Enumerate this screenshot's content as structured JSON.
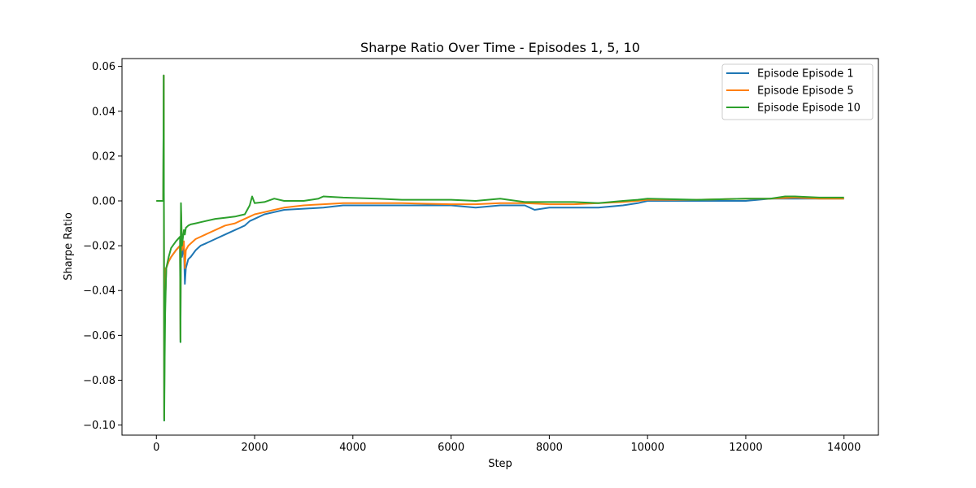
{
  "chart_data": {
    "type": "line",
    "title": "Sharpe Ratio Over Time - Episodes 1, 5, 10",
    "xlabel": "Step",
    "ylabel": "Sharpe Ratio",
    "xlim": [
      -700,
      14700
    ],
    "ylim": [
      -0.1045,
      0.0635
    ],
    "xticks": [
      0,
      2000,
      4000,
      6000,
      8000,
      10000,
      12000,
      14000
    ],
    "xtick_labels": [
      "0",
      "2000",
      "4000",
      "6000",
      "8000",
      "10000",
      "12000",
      "14000"
    ],
    "yticks": [
      -0.1,
      -0.08,
      -0.06,
      -0.04,
      -0.02,
      0.0,
      0.02,
      0.04,
      0.06
    ],
    "ytick_labels": [
      "−0.10",
      "−0.08",
      "−0.06",
      "−0.04",
      "−0.02",
      "0.00",
      "0.02",
      "0.04",
      "0.06"
    ],
    "grid": false,
    "legend_position": "top-right",
    "series": [
      {
        "name": "Episode Episode 1",
        "color": "#1f77b4",
        "x": [
          0,
          100,
          140,
          150,
          160,
          170,
          180,
          200,
          250,
          300,
          400,
          480,
          490,
          500,
          520,
          560,
          580,
          600,
          650,
          700,
          800,
          900,
          1000,
          1200,
          1400,
          1600,
          1700,
          1800,
          1900,
          2000,
          2200,
          2400,
          2600,
          3000,
          3400,
          3800,
          4500,
          5000,
          6000,
          6500,
          7000,
          7500,
          7700,
          8000,
          8500,
          9000,
          9500,
          9800,
          10000,
          11000,
          12000,
          12500,
          13000,
          13500,
          14000
        ],
        "y": [
          0.0,
          0.0,
          0.0,
          0.056,
          -0.098,
          -0.03,
          -0.045,
          -0.03,
          -0.027,
          -0.025,
          -0.022,
          -0.02,
          -0.063,
          -0.005,
          -0.025,
          -0.02,
          -0.037,
          -0.03,
          -0.026,
          -0.025,
          -0.022,
          -0.02,
          -0.019,
          -0.017,
          -0.015,
          -0.013,
          -0.012,
          -0.011,
          -0.009,
          -0.008,
          -0.006,
          -0.005,
          -0.004,
          -0.0035,
          -0.003,
          -0.002,
          -0.002,
          -0.002,
          -0.002,
          -0.003,
          -0.002,
          -0.002,
          -0.004,
          -0.003,
          -0.003,
          -0.003,
          -0.002,
          -0.001,
          0.0,
          0.0,
          0.0,
          0.001,
          0.001,
          0.001,
          0.001
        ]
      },
      {
        "name": "Episode Episode 5",
        "color": "#ff7f0e",
        "x": [
          0,
          100,
          140,
          150,
          160,
          170,
          180,
          200,
          250,
          300,
          400,
          480,
          490,
          500,
          520,
          560,
          580,
          600,
          650,
          700,
          800,
          900,
          1000,
          1200,
          1400,
          1600,
          1700,
          1800,
          1900,
          2000,
          2200,
          2400,
          2600,
          3000,
          3400,
          3800,
          4500,
          5000,
          6000,
          6500,
          7000,
          7500,
          8000,
          8500,
          9000,
          9500,
          9800,
          10000,
          11000,
          12000,
          12500,
          13000,
          13500,
          14000
        ],
        "y": [
          0.0,
          0.0,
          0.0,
          0.056,
          -0.097,
          -0.03,
          -0.045,
          -0.03,
          -0.027,
          -0.025,
          -0.022,
          -0.02,
          -0.062,
          -0.004,
          -0.022,
          -0.018,
          -0.03,
          -0.022,
          -0.02,
          -0.019,
          -0.017,
          -0.016,
          -0.015,
          -0.013,
          -0.011,
          -0.01,
          -0.009,
          -0.008,
          -0.007,
          -0.006,
          -0.005,
          -0.004,
          -0.003,
          -0.002,
          -0.0015,
          -0.001,
          -0.001,
          -0.001,
          -0.0015,
          -0.0015,
          -0.001,
          -0.001,
          -0.0015,
          -0.0015,
          -0.001,
          -0.0005,
          0.0,
          0.0005,
          0.0005,
          0.001,
          0.001,
          0.0015,
          0.001,
          0.001
        ]
      },
      {
        "name": "Episode Episode 10",
        "color": "#2ca02c",
        "x": [
          0,
          100,
          140,
          150,
          160,
          170,
          180,
          200,
          250,
          300,
          400,
          480,
          490,
          500,
          520,
          560,
          580,
          600,
          650,
          700,
          800,
          900,
          1000,
          1200,
          1400,
          1600,
          1700,
          1800,
          1900,
          1950,
          2000,
          2200,
          2400,
          2600,
          3000,
          3300,
          3400,
          3800,
          4500,
          5000,
          6000,
          6500,
          7000,
          7500,
          8000,
          8500,
          9000,
          9500,
          9800,
          10000,
          11000,
          12000,
          12500,
          12800,
          13000,
          13500,
          14000
        ],
        "y": [
          0.0,
          0.0,
          0.0,
          0.056,
          -0.098,
          -0.07,
          -0.05,
          -0.03,
          -0.025,
          -0.021,
          -0.018,
          -0.016,
          -0.063,
          -0.001,
          -0.02,
          -0.013,
          -0.015,
          -0.012,
          -0.011,
          -0.0105,
          -0.01,
          -0.0095,
          -0.009,
          -0.008,
          -0.0075,
          -0.007,
          -0.0065,
          -0.006,
          -0.002,
          0.002,
          -0.001,
          -0.0005,
          0.001,
          0.0,
          0.0,
          0.001,
          0.002,
          0.0015,
          0.001,
          0.0005,
          0.0005,
          0.0,
          0.001,
          -0.0005,
          -0.0005,
          -0.0005,
          -0.001,
          0.0,
          0.0005,
          0.001,
          0.0005,
          0.001,
          0.001,
          0.002,
          0.002,
          0.0015,
          0.0015
        ]
      }
    ]
  }
}
